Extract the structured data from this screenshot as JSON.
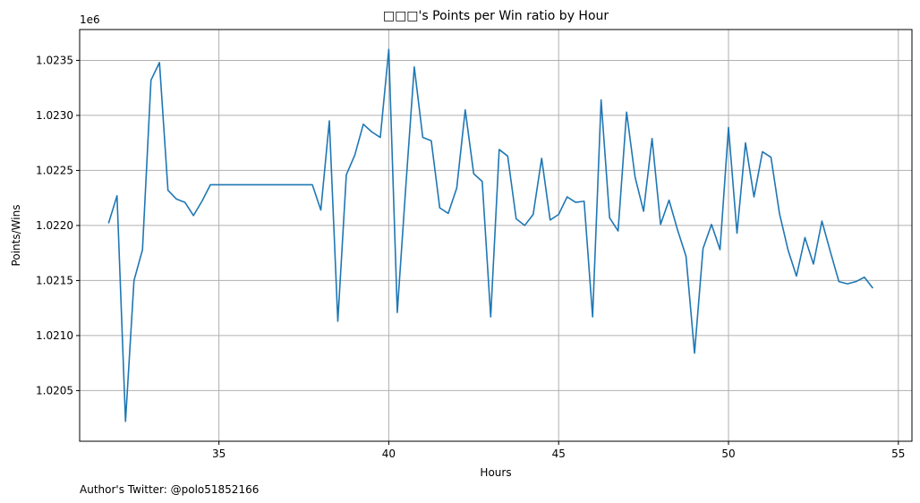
{
  "chart_data": {
    "type": "line",
    "title": "□□□'s Points per Win ratio by Hour",
    "xlabel": "Hours",
    "ylabel": "Points/Wins",
    "y_offset_label": "1e6",
    "footnote": "Author's Twitter: @polo51852166",
    "grid": true,
    "xlim": [
      30.9,
      55.4
    ],
    "ylim": [
      1.02004,
      1.02378
    ],
    "x_ticks": [
      35,
      40,
      45,
      50,
      55
    ],
    "y_ticks": [
      1.0205,
      1.021,
      1.0215,
      1.022,
      1.0225,
      1.023,
      1.0235
    ],
    "y_tick_labels": [
      "1.0205",
      "1.0210",
      "1.0215",
      "1.0220",
      "1.0225",
      "1.0230",
      "1.0235"
    ],
    "line_color": "#1f77b4",
    "series": [
      {
        "x": [
          31.75,
          32.0,
          32.25,
          32.5,
          32.75,
          33.0,
          33.25,
          33.5,
          33.75,
          34.0,
          34.25,
          34.5,
          34.75,
          35.0,
          35.25,
          35.5,
          35.75,
          36.0,
          36.25,
          36.5,
          36.75,
          37.0,
          37.25,
          37.5,
          37.75,
          38.0,
          38.25,
          38.5,
          38.75,
          39.0,
          39.25,
          39.5,
          39.75,
          40.0,
          40.25,
          40.5,
          40.75,
          41.0,
          41.25,
          41.5,
          41.75,
          42.0,
          42.25,
          42.5,
          42.75,
          43.0,
          43.25,
          43.5,
          43.75,
          44.0,
          44.25,
          44.5,
          44.75,
          45.0,
          45.25,
          45.5,
          45.75,
          46.0,
          46.25,
          46.5,
          46.75,
          47.0,
          47.25,
          47.5,
          47.75,
          48.0,
          48.25,
          48.5,
          48.75,
          49.0,
          49.25,
          49.5,
          49.75,
          50.0,
          50.25,
          50.5,
          50.75,
          51.0,
          51.25,
          51.5,
          51.75,
          52.0,
          52.25,
          52.5,
          52.75,
          53.0,
          53.25,
          53.5,
          53.75,
          54.0,
          54.25
        ],
        "values": [
          1.02202,
          1.02227,
          1.02022,
          1.0215,
          1.02178,
          1.02332,
          1.02348,
          1.02232,
          1.02224,
          1.02221,
          1.02209,
          1.02222,
          1.02237,
          1.02237,
          1.02237,
          1.02237,
          1.02237,
          1.02237,
          1.02237,
          1.02237,
          1.02237,
          1.02237,
          1.02237,
          1.02237,
          1.02237,
          1.02214,
          1.02295,
          1.02113,
          1.02246,
          1.02264,
          1.02292,
          1.02285,
          1.0228,
          1.0236,
          1.02121,
          1.02235,
          1.02344,
          1.0228,
          1.02277,
          1.02216,
          1.02211,
          1.02234,
          1.02305,
          1.02247,
          1.0224,
          1.02117,
          1.02269,
          1.02263,
          1.02206,
          1.022,
          1.0221,
          1.02261,
          1.02205,
          1.0221,
          1.02226,
          1.02221,
          1.02222,
          1.02117,
          1.02314,
          1.02207,
          1.02195,
          1.02303,
          1.02244,
          1.02213,
          1.02279,
          1.02201,
          1.02223,
          1.02196,
          1.02172,
          1.02084,
          1.02179,
          1.02201,
          1.02178,
          1.02289,
          1.02193,
          1.02275,
          1.02226,
          1.02267,
          1.02262,
          1.02211,
          1.02178,
          1.02154,
          1.02189,
          1.02165,
          1.02204,
          1.02176,
          1.02149,
          1.02147,
          1.02149,
          1.02153,
          1.02143
        ]
      }
    ]
  }
}
